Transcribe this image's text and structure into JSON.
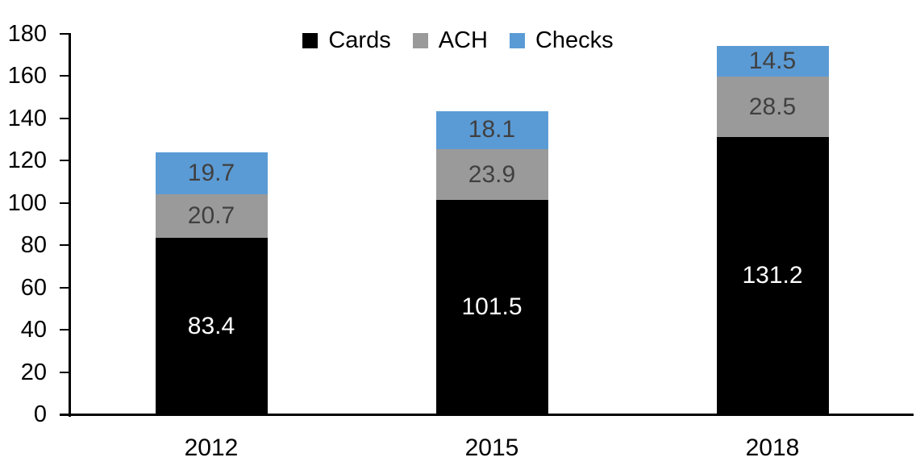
{
  "chart_data": {
    "type": "bar",
    "stacked": true,
    "title": "",
    "xlabel": "",
    "ylabel": "",
    "categories": [
      "2012",
      "2015",
      "2018"
    ],
    "series": [
      {
        "name": "Cards",
        "values": [
          83.4,
          101.5,
          131.2
        ],
        "color": "#000000",
        "label_color": "#ffffff"
      },
      {
        "name": "ACH",
        "values": [
          20.7,
          23.9,
          28.5
        ],
        "color": "#9a9a9a",
        "label_color": "#404040"
      },
      {
        "name": "Checks",
        "values": [
          19.7,
          18.1,
          14.5
        ],
        "color": "#5b9bd5",
        "label_color": "#404040"
      }
    ],
    "totals": [
      123.8,
      143.5,
      174.2
    ],
    "ylim": [
      0,
      180
    ],
    "yticks": [
      0,
      20,
      40,
      60,
      80,
      100,
      120,
      140,
      160,
      180
    ],
    "grid": false,
    "data_labels": true,
    "data_label_decimals": 1,
    "legend_position": "top-center",
    "axis_color": "#000000",
    "background_color": "#ffffff"
  }
}
